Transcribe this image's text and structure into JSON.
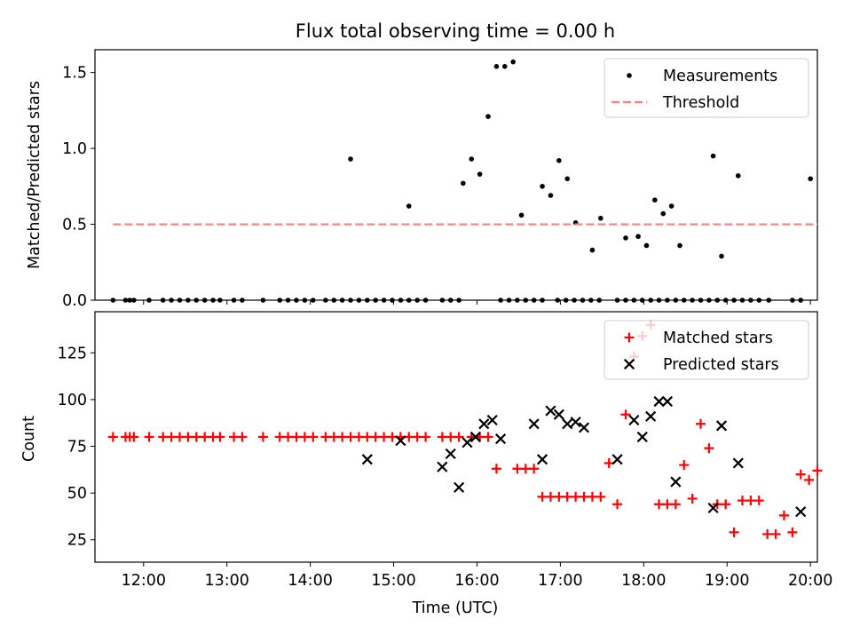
{
  "chart_data": [
    {
      "type": "scatter",
      "title": "Flux total observing time = 0.00 h",
      "ylabel": "Matched/Predicted stars",
      "xlabel": "",
      "x_axis_type": "time",
      "xlim": [
        "11:25",
        "20:05"
      ],
      "ylim": [
        0,
        1.65
      ],
      "y_ticks": [
        "0.0",
        "0.5",
        "1.0",
        "1.5"
      ],
      "x_ticks": [
        "12:00",
        "13:00",
        "14:00",
        "15:00",
        "16:00",
        "17:00",
        "18:00",
        "19:00",
        "20:00"
      ],
      "x_ticklabels_visible": false,
      "legend": {
        "placement": "top-right",
        "entries": [
          "Measurements",
          "Threshold"
        ]
      },
      "grid": false,
      "colors": {
        "measurements": "#000000",
        "threshold": "#ff7f7f"
      },
      "series": [
        {
          "name": "Measurements",
          "marker": "dot",
          "points": [
            [
              "11:38",
              0
            ],
            [
              "11:47",
              0
            ],
            [
              "11:50",
              0
            ],
            [
              "11:53",
              0
            ],
            [
              "12:04",
              0
            ],
            [
              "12:14",
              0
            ],
            [
              "12:20",
              0
            ],
            [
              "12:26",
              0
            ],
            [
              "12:32",
              0
            ],
            [
              "12:38",
              0
            ],
            [
              "12:44",
              0
            ],
            [
              "12:50",
              0
            ],
            [
              "12:55",
              0
            ],
            [
              "13:05",
              0
            ],
            [
              "13:11",
              0
            ],
            [
              "13:26",
              0
            ],
            [
              "13:38",
              0
            ],
            [
              "13:44",
              0
            ],
            [
              "13:50",
              0
            ],
            [
              "13:56",
              0
            ],
            [
              "14:02",
              0
            ],
            [
              "14:11",
              0
            ],
            [
              "14:17",
              0
            ],
            [
              "14:23",
              0
            ],
            [
              "14:29",
              0
            ],
            [
              "14:35",
              0
            ],
            [
              "14:41",
              0
            ],
            [
              "14:47",
              0
            ],
            [
              "14:53",
              0
            ],
            [
              "14:59",
              0
            ],
            [
              "15:05",
              0
            ],
            [
              "15:11",
              0
            ],
            [
              "15:17",
              0
            ],
            [
              "15:23",
              0
            ],
            [
              "15:35",
              0
            ],
            [
              "15:41",
              0
            ],
            [
              "15:47",
              0
            ],
            [
              "16:17",
              0
            ],
            [
              "16:23",
              0
            ],
            [
              "16:29",
              0
            ],
            [
              "16:35",
              0
            ],
            [
              "16:41",
              0
            ],
            [
              "16:47",
              0
            ],
            [
              "16:58",
              0
            ],
            [
              "17:04",
              0
            ],
            [
              "17:10",
              0
            ],
            [
              "17:16",
              0
            ],
            [
              "17:22",
              0
            ],
            [
              "17:28",
              0
            ],
            [
              "17:41",
              0
            ],
            [
              "17:47",
              0
            ],
            [
              "17:53",
              0
            ],
            [
              "17:59",
              0
            ],
            [
              "18:05",
              0
            ],
            [
              "18:11",
              0
            ],
            [
              "18:17",
              0
            ],
            [
              "18:23",
              0
            ],
            [
              "18:29",
              0
            ],
            [
              "18:35",
              0
            ],
            [
              "18:41",
              0
            ],
            [
              "18:47",
              0
            ],
            [
              "18:53",
              0
            ],
            [
              "18:59",
              0
            ],
            [
              "19:05",
              0
            ],
            [
              "19:11",
              0
            ],
            [
              "19:17",
              0
            ],
            [
              "19:23",
              0
            ],
            [
              "19:30",
              0
            ],
            [
              "19:47",
              0
            ],
            [
              "19:53",
              0
            ],
            [
              "14:29",
              0.93
            ],
            [
              "15:11",
              0.62
            ],
            [
              "15:50",
              0.77
            ],
            [
              "15:56",
              0.93
            ],
            [
              "16:02",
              0.83
            ],
            [
              "16:08",
              1.21
            ],
            [
              "16:14",
              1.54
            ],
            [
              "16:20",
              1.54
            ],
            [
              "16:26",
              1.57
            ],
            [
              "16:32",
              0.56
            ],
            [
              "16:47",
              0.75
            ],
            [
              "16:53",
              0.69
            ],
            [
              "16:59",
              0.92
            ],
            [
              "17:05",
              0.8
            ],
            [
              "17:11",
              0.51
            ],
            [
              "17:23",
              0.33
            ],
            [
              "17:29",
              0.54
            ],
            [
              "17:47",
              0.41
            ],
            [
              "17:56",
              0.42
            ],
            [
              "18:02",
              0.36
            ],
            [
              "18:08",
              0.66
            ],
            [
              "18:14",
              0.57
            ],
            [
              "18:20",
              0.62
            ],
            [
              "18:26",
              0.36
            ],
            [
              "18:50",
              0.95
            ],
            [
              "18:56",
              0.29
            ],
            [
              "19:08",
              0.82
            ],
            [
              "20:00",
              0.8
            ]
          ]
        },
        {
          "name": "Threshold",
          "line": "dashed",
          "points": [
            [
              "11:38",
              0.5
            ],
            [
              "20:05",
              0.5
            ]
          ]
        }
      ]
    },
    {
      "type": "scatter",
      "title": "",
      "xlabel": "Time (UTC)",
      "ylabel": "Count",
      "x_axis_type": "time",
      "xlim": [
        "11:25",
        "20:05"
      ],
      "ylim": [
        13,
        147
      ],
      "y_ticks": [
        "25",
        "50",
        "75",
        "100",
        "125"
      ],
      "x_ticks": [
        "12:00",
        "13:00",
        "14:00",
        "15:00",
        "16:00",
        "17:00",
        "18:00",
        "19:00",
        "20:00"
      ],
      "legend": {
        "placement": "top-right",
        "entries": [
          "Matched stars",
          "Predicted stars"
        ]
      },
      "grid": false,
      "colors": {
        "matched": "#ff0000",
        "predicted": "#000000"
      },
      "series": [
        {
          "name": "Matched stars",
          "marker": "plus",
          "points": [
            [
              "11:38",
              80
            ],
            [
              "11:47",
              80
            ],
            [
              "11:50",
              80
            ],
            [
              "11:53",
              80
            ],
            [
              "12:04",
              80
            ],
            [
              "12:14",
              80
            ],
            [
              "12:20",
              80
            ],
            [
              "12:26",
              80
            ],
            [
              "12:32",
              80
            ],
            [
              "12:38",
              80
            ],
            [
              "12:44",
              80
            ],
            [
              "12:50",
              80
            ],
            [
              "12:55",
              80
            ],
            [
              "13:05",
              80
            ],
            [
              "13:11",
              80
            ],
            [
              "13:26",
              80
            ],
            [
              "13:38",
              80
            ],
            [
              "13:44",
              80
            ],
            [
              "13:50",
              80
            ],
            [
              "13:56",
              80
            ],
            [
              "14:02",
              80
            ],
            [
              "14:11",
              80
            ],
            [
              "14:17",
              80
            ],
            [
              "14:23",
              80
            ],
            [
              "14:29",
              80
            ],
            [
              "14:35",
              80
            ],
            [
              "14:41",
              80
            ],
            [
              "14:47",
              80
            ],
            [
              "14:53",
              80
            ],
            [
              "14:59",
              80
            ],
            [
              "15:05",
              80
            ],
            [
              "15:11",
              80
            ],
            [
              "15:17",
              80
            ],
            [
              "15:23",
              80
            ],
            [
              "15:35",
              80
            ],
            [
              "15:41",
              80
            ],
            [
              "15:47",
              80
            ],
            [
              "15:56",
              80
            ],
            [
              "16:02",
              80
            ],
            [
              "16:08",
              80
            ],
            [
              "16:14",
              63
            ],
            [
              "16:29",
              63
            ],
            [
              "16:35",
              63
            ],
            [
              "16:41",
              63
            ],
            [
              "16:47",
              48
            ],
            [
              "16:53",
              48
            ],
            [
              "16:59",
              48
            ],
            [
              "17:05",
              48
            ],
            [
              "17:11",
              48
            ],
            [
              "17:17",
              48
            ],
            [
              "17:23",
              48
            ],
            [
              "17:29",
              48
            ],
            [
              "17:35",
              66
            ],
            [
              "17:41",
              44
            ],
            [
              "17:47",
              92
            ],
            [
              "17:53",
              123
            ],
            [
              "17:59",
              134
            ],
            [
              "18:05",
              140
            ],
            [
              "18:11",
              44
            ],
            [
              "18:17",
              44
            ],
            [
              "18:23",
              44
            ],
            [
              "18:29",
              65
            ],
            [
              "18:35",
              47
            ],
            [
              "18:41",
              87
            ],
            [
              "18:47",
              74
            ],
            [
              "18:53",
              44
            ],
            [
              "18:59",
              44
            ],
            [
              "19:05",
              29
            ],
            [
              "19:11",
              46
            ],
            [
              "19:17",
              46
            ],
            [
              "19:23",
              46
            ],
            [
              "19:29",
              28
            ],
            [
              "19:35",
              28
            ],
            [
              "19:41",
              38
            ],
            [
              "19:47",
              29
            ],
            [
              "19:53",
              60
            ],
            [
              "19:59",
              57
            ],
            [
              "20:05",
              62
            ]
          ]
        },
        {
          "name": "Predicted stars",
          "marker": "x",
          "points": [
            [
              "14:41",
              68
            ],
            [
              "15:05",
              78
            ],
            [
              "15:35",
              64
            ],
            [
              "15:41",
              71
            ],
            [
              "15:47",
              53
            ],
            [
              "15:53",
              77
            ],
            [
              "15:59",
              80
            ],
            [
              "16:05",
              87
            ],
            [
              "16:11",
              89
            ],
            [
              "16:17",
              79
            ],
            [
              "16:41",
              87
            ],
            [
              "16:47",
              68
            ],
            [
              "16:53",
              94
            ],
            [
              "16:59",
              92
            ],
            [
              "17:05",
              87
            ],
            [
              "17:11",
              88
            ],
            [
              "17:17",
              85
            ],
            [
              "17:41",
              68
            ],
            [
              "17:53",
              89
            ],
            [
              "17:59",
              80
            ],
            [
              "18:05",
              91
            ],
            [
              "18:11",
              99
            ],
            [
              "18:17",
              99
            ],
            [
              "18:23",
              56
            ],
            [
              "18:50",
              42
            ],
            [
              "18:56",
              86
            ],
            [
              "19:08",
              66
            ],
            [
              "19:53",
              40
            ]
          ]
        }
      ]
    }
  ]
}
